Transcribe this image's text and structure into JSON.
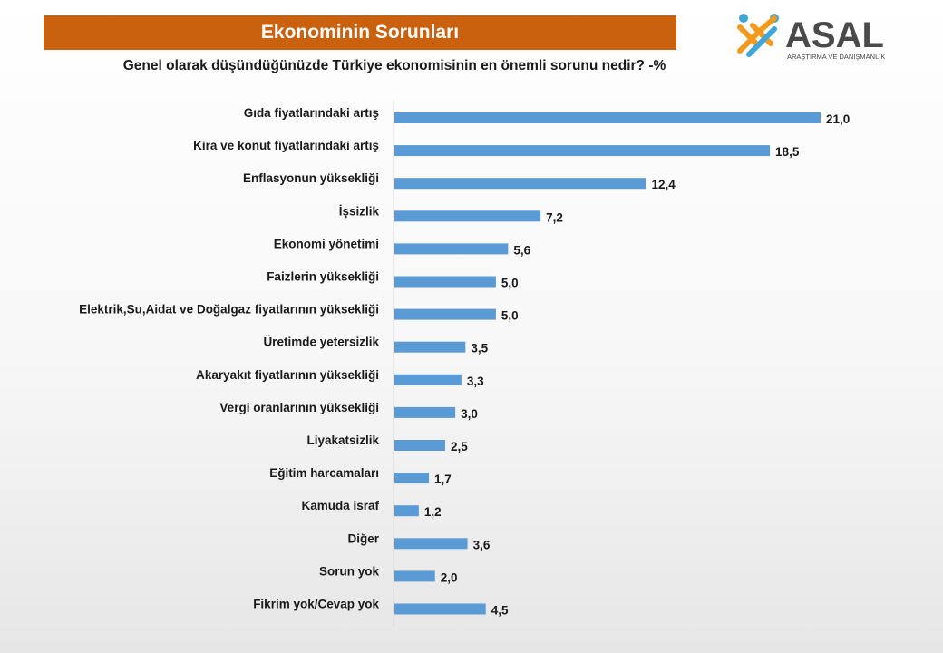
{
  "header": {
    "title": "Ekonominin Sorunları",
    "subtitle": "Genel olarak düşündüğünüzde  Türkiye ekonomisinin  en önemli sorunu  nedir? -%"
  },
  "logo": {
    "name": "ASAL",
    "tagline": "ARAŞTIRMA VE DANIŞMANLIK",
    "colors": {
      "orange": "#f39a1e",
      "blue": "#3fa6d9",
      "text": "#4a4a4a"
    }
  },
  "colors": {
    "title_bg": "#c9610f",
    "bar": "#5b9bd5"
  },
  "chart_data": {
    "type": "bar",
    "orientation": "horizontal",
    "title": "Ekonominin Sorunları",
    "subtitle": "Genel olarak düşündüğünüzde  Türkiye ekonomisinin  en önemli sorunu  nedir? -%",
    "categories": [
      "Gıda fiyatlarındaki artış",
      "Kira ve konut fiyatlarındaki artış",
      "Enflasyonun yüksekliği",
      "İşsizlik",
      "Ekonomi yönetimi",
      "Faizlerin yüksekliği",
      "Elektrik,Su,Aidat ve Doğalgaz fiyatlarının yüksekliği",
      "Üretimde yetersizlik",
      "Akaryakıt fiyatlarının yüksekliği",
      "Vergi oranlarının yüksekliği",
      "Liyakatsizlik",
      "Eğitim harcamaları",
      "Kamuda israf",
      "Diğer",
      "Sorun yok",
      "Fikrim yok/Cevap yok"
    ],
    "values": [
      21.0,
      18.5,
      12.4,
      7.2,
      5.6,
      5.0,
      5.0,
      3.5,
      3.3,
      3.0,
      2.5,
      1.7,
      1.2,
      3.6,
      2.0,
      4.5
    ],
    "value_labels": [
      "21,0",
      "18,5",
      "12,4",
      "7,2",
      "5,6",
      "5,0",
      "5,0",
      "3,5",
      "3,3",
      "3,0",
      "2,5",
      "1,7",
      "1,2",
      "3,6",
      "2,0",
      "4,5"
    ],
    "xlim": [
      0,
      21.0
    ],
    "grid": false,
    "legend": "none"
  }
}
